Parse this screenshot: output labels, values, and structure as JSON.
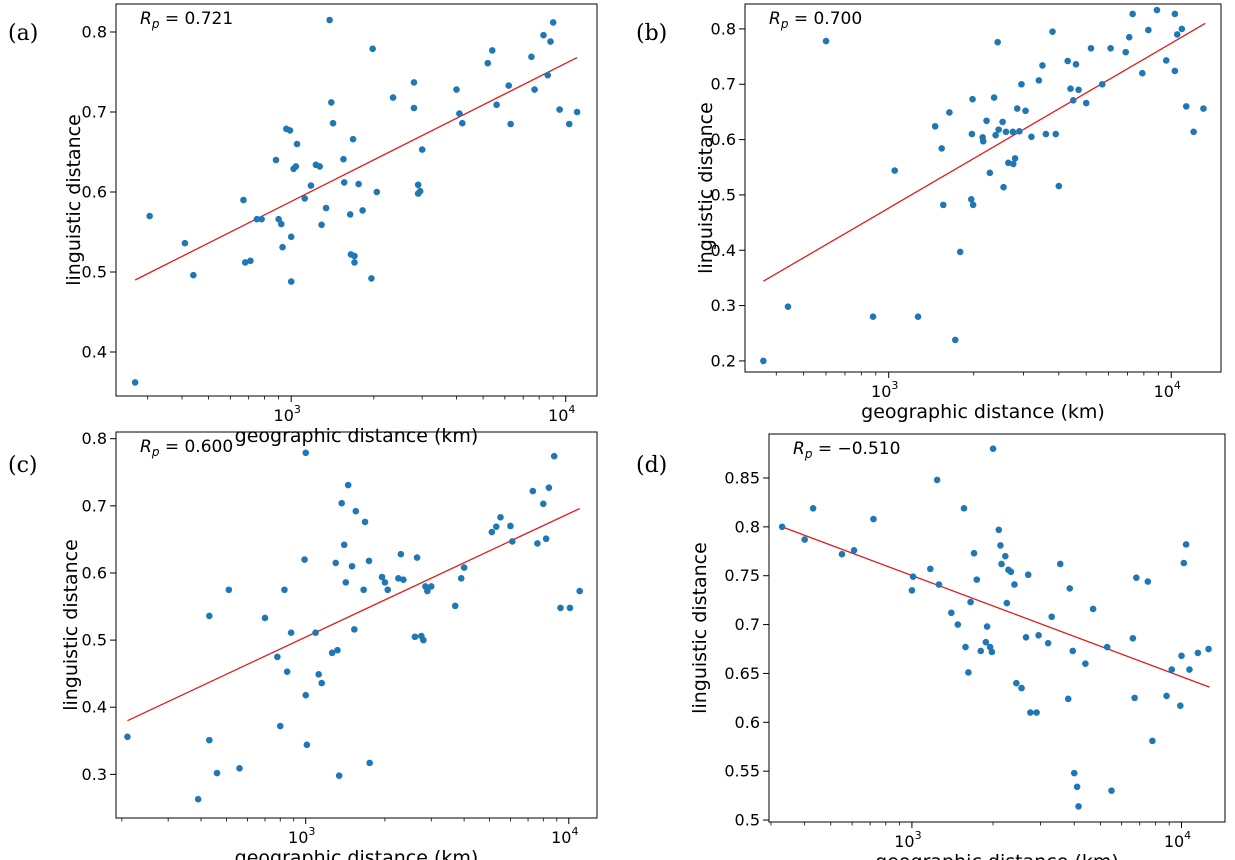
{
  "colors": {
    "points": "#1f77b4",
    "fit": "#e31a1c",
    "axes": "#000000"
  },
  "chart_data": [
    {
      "type": "scatter",
      "panel": "(a)",
      "annotation": "R_p = 0.721",
      "annotation_sub": "p",
      "annotation_value": " = 0.721",
      "xlabel": "geographic distance (km)",
      "ylabel": "linguistic distance",
      "xscale": "log",
      "xlim": [
        230,
        13000
      ],
      "ylim": [
        0.345,
        0.835
      ],
      "xticks": [
        {
          "value": 1000,
          "base": "10",
          "exp": "3"
        },
        {
          "value": 10000,
          "base": "10",
          "exp": "4"
        }
      ],
      "yticks": [
        0.4,
        0.5,
        0.6,
        0.7,
        0.8
      ],
      "fit": {
        "x": [
          270,
          11000
        ],
        "y": [
          0.49,
          0.768
        ]
      },
      "points": [
        [
          270,
          0.362
        ],
        [
          305,
          0.57
        ],
        [
          410,
          0.536
        ],
        [
          440,
          0.496
        ],
        [
          670,
          0.59
        ],
        [
          680,
          0.512
        ],
        [
          710,
          0.514
        ],
        [
          750,
          0.566
        ],
        [
          780,
          0.566
        ],
        [
          880,
          0.64
        ],
        [
          900,
          0.566
        ],
        [
          920,
          0.56
        ],
        [
          930,
          0.531
        ],
        [
          960,
          0.679
        ],
        [
          990,
          0.677
        ],
        [
          1000,
          0.488
        ],
        [
          1000,
          0.544
        ],
        [
          1020,
          0.629
        ],
        [
          1040,
          0.632
        ],
        [
          1050,
          0.66
        ],
        [
          1120,
          0.592
        ],
        [
          1180,
          0.608
        ],
        [
          1230,
          0.634
        ],
        [
          1270,
          0.632
        ],
        [
          1290,
          0.559
        ],
        [
          1340,
          0.58
        ],
        [
          1380,
          0.815
        ],
        [
          1400,
          0.712
        ],
        [
          1420,
          0.686
        ],
        [
          1550,
          0.641
        ],
        [
          1560,
          0.612
        ],
        [
          1640,
          0.572
        ],
        [
          1650,
          0.522
        ],
        [
          1680,
          0.666
        ],
        [
          1700,
          0.52
        ],
        [
          1700,
          0.512
        ],
        [
          1760,
          0.61
        ],
        [
          1820,
          0.577
        ],
        [
          1960,
          0.492
        ],
        [
          1980,
          0.779
        ],
        [
          2050,
          0.6
        ],
        [
          2350,
          0.718
        ],
        [
          2800,
          0.737
        ],
        [
          2800,
          0.705
        ],
        [
          2900,
          0.609
        ],
        [
          2900,
          0.598
        ],
        [
          2950,
          0.601
        ],
        [
          3000,
          0.653
        ],
        [
          4000,
          0.728
        ],
        [
          4100,
          0.698
        ],
        [
          4200,
          0.686
        ],
        [
          5200,
          0.761
        ],
        [
          5400,
          0.777
        ],
        [
          5600,
          0.709
        ],
        [
          6200,
          0.733
        ],
        [
          6300,
          0.685
        ],
        [
          7500,
          0.769
        ],
        [
          7700,
          0.728
        ],
        [
          8300,
          0.796
        ],
        [
          8600,
          0.746
        ],
        [
          8800,
          0.788
        ],
        [
          9000,
          0.812
        ],
        [
          9500,
          0.703
        ],
        [
          10300,
          0.685
        ],
        [
          11000,
          0.7
        ]
      ]
    },
    {
      "type": "scatter",
      "panel": "(b)",
      "annotation": "R_p = 0.700",
      "annotation_sub": "p",
      "annotation_value": " = 0.700",
      "xlabel": "geographic distance (km)",
      "ylabel": "linguistic distance",
      "xscale": "log",
      "xlim": [
        310,
        15000
      ],
      "ylim": [
        0.18,
        0.845
      ],
      "xticks": [
        {
          "value": 1000,
          "base": "10",
          "exp": "3"
        },
        {
          "value": 10000,
          "base": "10",
          "exp": "4"
        }
      ],
      "yticks": [
        0.2,
        0.3,
        0.4,
        0.5,
        0.6,
        0.7,
        0.8
      ],
      "fit": {
        "x": [
          360,
          13200
        ],
        "y": [
          0.344,
          0.81
        ]
      },
      "points": [
        [
          360,
          0.2
        ],
        [
          440,
          0.298
        ],
        [
          600,
          0.778
        ],
        [
          880,
          0.28
        ],
        [
          1050,
          0.544
        ],
        [
          1270,
          0.28
        ],
        [
          1460,
          0.624
        ],
        [
          1540,
          0.584
        ],
        [
          1560,
          0.482
        ],
        [
          1640,
          0.649
        ],
        [
          1720,
          0.238
        ],
        [
          1790,
          0.397
        ],
        [
          1960,
          0.492
        ],
        [
          1970,
          0.61
        ],
        [
          1980,
          0.673
        ],
        [
          1990,
          0.482
        ],
        [
          2150,
          0.604
        ],
        [
          2160,
          0.597
        ],
        [
          2220,
          0.634
        ],
        [
          2280,
          0.54
        ],
        [
          2360,
          0.676
        ],
        [
          2390,
          0.608
        ],
        [
          2430,
          0.776
        ],
        [
          2450,
          0.618
        ],
        [
          2530,
          0.632
        ],
        [
          2550,
          0.514
        ],
        [
          2600,
          0.614
        ],
        [
          2650,
          0.558
        ],
        [
          2750,
          0.614
        ],
        [
          2760,
          0.556
        ],
        [
          2800,
          0.566
        ],
        [
          2850,
          0.656
        ],
        [
          2900,
          0.615
        ],
        [
          2950,
          0.7
        ],
        [
          3050,
          0.652
        ],
        [
          3200,
          0.605
        ],
        [
          3400,
          0.707
        ],
        [
          3500,
          0.734
        ],
        [
          3600,
          0.61
        ],
        [
          3800,
          0.795
        ],
        [
          3900,
          0.61
        ],
        [
          4000,
          0.516
        ],
        [
          4300,
          0.742
        ],
        [
          4400,
          0.692
        ],
        [
          4500,
          0.671
        ],
        [
          4600,
          0.736
        ],
        [
          4700,
          0.69
        ],
        [
          5000,
          0.666
        ],
        [
          5200,
          0.765
        ],
        [
          5700,
          0.7
        ],
        [
          6100,
          0.765
        ],
        [
          6900,
          0.758
        ],
        [
          7100,
          0.785
        ],
        [
          7300,
          0.827
        ],
        [
          7900,
          0.72
        ],
        [
          8300,
          0.798
        ],
        [
          8900,
          0.834
        ],
        [
          9600,
          0.743
        ],
        [
          10300,
          0.724
        ],
        [
          10300,
          0.827
        ],
        [
          10500,
          0.79
        ],
        [
          10900,
          0.8
        ],
        [
          11300,
          0.66
        ],
        [
          12000,
          0.614
        ],
        [
          13000,
          0.656
        ]
      ]
    },
    {
      "type": "scatter",
      "panel": "(c)",
      "annotation": "R_p = 0.600",
      "annotation_sub": "p",
      "annotation_value": " = 0.600",
      "xlabel": "geographic distance (km)",
      "ylabel": "linguistic distance",
      "xscale": "log",
      "xlim": [
        190,
        12800
      ],
      "ylim": [
        0.235,
        0.81
      ],
      "xticks": [
        {
          "value": 1000,
          "base": "10",
          "exp": "3"
        },
        {
          "value": 10000,
          "base": "10",
          "exp": "4"
        }
      ],
      "yticks": [
        0.3,
        0.4,
        0.5,
        0.6,
        0.7,
        0.8
      ],
      "fit": {
        "x": [
          210,
          11000
        ],
        "y": [
          0.38,
          0.696
        ]
      },
      "points": [
        [
          210,
          0.356
        ],
        [
          390,
          0.263
        ],
        [
          430,
          0.351
        ],
        [
          430,
          0.536
        ],
        [
          460,
          0.302
        ],
        [
          510,
          0.575
        ],
        [
          560,
          0.309
        ],
        [
          700,
          0.533
        ],
        [
          780,
          0.475
        ],
        [
          800,
          0.372
        ],
        [
          830,
          0.575
        ],
        [
          850,
          0.453
        ],
        [
          880,
          0.511
        ],
        [
          990,
          0.62
        ],
        [
          1000,
          0.418
        ],
        [
          1000,
          0.779
        ],
        [
          1010,
          0.344
        ],
        [
          1090,
          0.511
        ],
        [
          1120,
          0.449
        ],
        [
          1150,
          0.436
        ],
        [
          1260,
          0.481
        ],
        [
          1300,
          0.615
        ],
        [
          1320,
          0.485
        ],
        [
          1340,
          0.298
        ],
        [
          1370,
          0.704
        ],
        [
          1400,
          0.642
        ],
        [
          1420,
          0.586
        ],
        [
          1450,
          0.731
        ],
        [
          1500,
          0.61
        ],
        [
          1530,
          0.516
        ],
        [
          1550,
          0.692
        ],
        [
          1660,
          0.575
        ],
        [
          1680,
          0.676
        ],
        [
          1740,
          0.618
        ],
        [
          1750,
          0.317
        ],
        [
          1950,
          0.594
        ],
        [
          2000,
          0.586
        ],
        [
          2050,
          0.575
        ],
        [
          2250,
          0.592
        ],
        [
          2300,
          0.628
        ],
        [
          2350,
          0.59
        ],
        [
          2600,
          0.505
        ],
        [
          2650,
          0.623
        ],
        [
          2750,
          0.506
        ],
        [
          2800,
          0.5
        ],
        [
          2850,
          0.58
        ],
        [
          2900,
          0.573
        ],
        [
          3000,
          0.58
        ],
        [
          3700,
          0.551
        ],
        [
          3900,
          0.592
        ],
        [
          4000,
          0.608
        ],
        [
          5100,
          0.661
        ],
        [
          5300,
          0.669
        ],
        [
          5500,
          0.683
        ],
        [
          6000,
          0.67
        ],
        [
          6100,
          0.647
        ],
        [
          7300,
          0.722
        ],
        [
          7600,
          0.644
        ],
        [
          8000,
          0.703
        ],
        [
          8200,
          0.651
        ],
        [
          8400,
          0.727
        ],
        [
          8800,
          0.774
        ],
        [
          9300,
          0.548
        ],
        [
          10100,
          0.548
        ],
        [
          11000,
          0.573
        ]
      ]
    },
    {
      "type": "scatter",
      "panel": "(d)",
      "annotation": "R_p = -0.510",
      "annotation_sub": "p",
      "annotation_value": " = −0.510",
      "xlabel": "geographic distance (km)",
      "ylabel": "linguistic distance",
      "xscale": "log",
      "xlim": [
        295,
        14500
      ],
      "ylim": [
        0.498,
        0.895
      ],
      "xticks": [
        {
          "value": 1000,
          "base": "10",
          "exp": "3"
        },
        {
          "value": 10000,
          "base": "10",
          "exp": "4"
        }
      ],
      "yticks": [
        0.5,
        0.55,
        0.6,
        0.65,
        0.7,
        0.75,
        0.8,
        0.85
      ],
      "fit": {
        "x": [
          330,
          12700
        ],
        "y": [
          0.8,
          0.636
        ]
      },
      "points": [
        [
          330,
          0.8
        ],
        [
          400,
          0.787
        ],
        [
          430,
          0.819
        ],
        [
          550,
          0.772
        ],
        [
          610,
          0.776
        ],
        [
          720,
          0.808
        ],
        [
          1000,
          0.735
        ],
        [
          1010,
          0.749
        ],
        [
          1170,
          0.757
        ],
        [
          1240,
          0.848
        ],
        [
          1260,
          0.741
        ],
        [
          1400,
          0.712
        ],
        [
          1480,
          0.7
        ],
        [
          1560,
          0.819
        ],
        [
          1580,
          0.677
        ],
        [
          1620,
          0.651
        ],
        [
          1650,
          0.723
        ],
        [
          1700,
          0.773
        ],
        [
          1740,
          0.746
        ],
        [
          1800,
          0.673
        ],
        [
          1880,
          0.682
        ],
        [
          1900,
          0.698
        ],
        [
          1950,
          0.677
        ],
        [
          1980,
          0.672
        ],
        [
          2000,
          0.88
        ],
        [
          2100,
          0.797
        ],
        [
          2130,
          0.781
        ],
        [
          2150,
          0.762
        ],
        [
          2220,
          0.77
        ],
        [
          2250,
          0.722
        ],
        [
          2280,
          0.756
        ],
        [
          2330,
          0.754
        ],
        [
          2400,
          0.741
        ],
        [
          2440,
          0.64
        ],
        [
          2550,
          0.635
        ],
        [
          2650,
          0.687
        ],
        [
          2700,
          0.751
        ],
        [
          2750,
          0.61
        ],
        [
          2900,
          0.61
        ],
        [
          2950,
          0.689
        ],
        [
          3200,
          0.681
        ],
        [
          3300,
          0.708
        ],
        [
          3550,
          0.762
        ],
        [
          3800,
          0.624
        ],
        [
          3850,
          0.737
        ],
        [
          3950,
          0.673
        ],
        [
          4000,
          0.548
        ],
        [
          4100,
          0.534
        ],
        [
          4150,
          0.514
        ],
        [
          4400,
          0.66
        ],
        [
          4700,
          0.716
        ],
        [
          5300,
          0.677
        ],
        [
          5500,
          0.53
        ],
        [
          6600,
          0.686
        ],
        [
          6700,
          0.625
        ],
        [
          6800,
          0.748
        ],
        [
          7500,
          0.744
        ],
        [
          7800,
          0.581
        ],
        [
          8800,
          0.627
        ],
        [
          9200,
          0.654
        ],
        [
          9900,
          0.617
        ],
        [
          10000,
          0.668
        ],
        [
          10200,
          0.763
        ],
        [
          10400,
          0.782
        ],
        [
          10700,
          0.654
        ],
        [
          11500,
          0.671
        ],
        [
          12600,
          0.675
        ]
      ]
    }
  ]
}
